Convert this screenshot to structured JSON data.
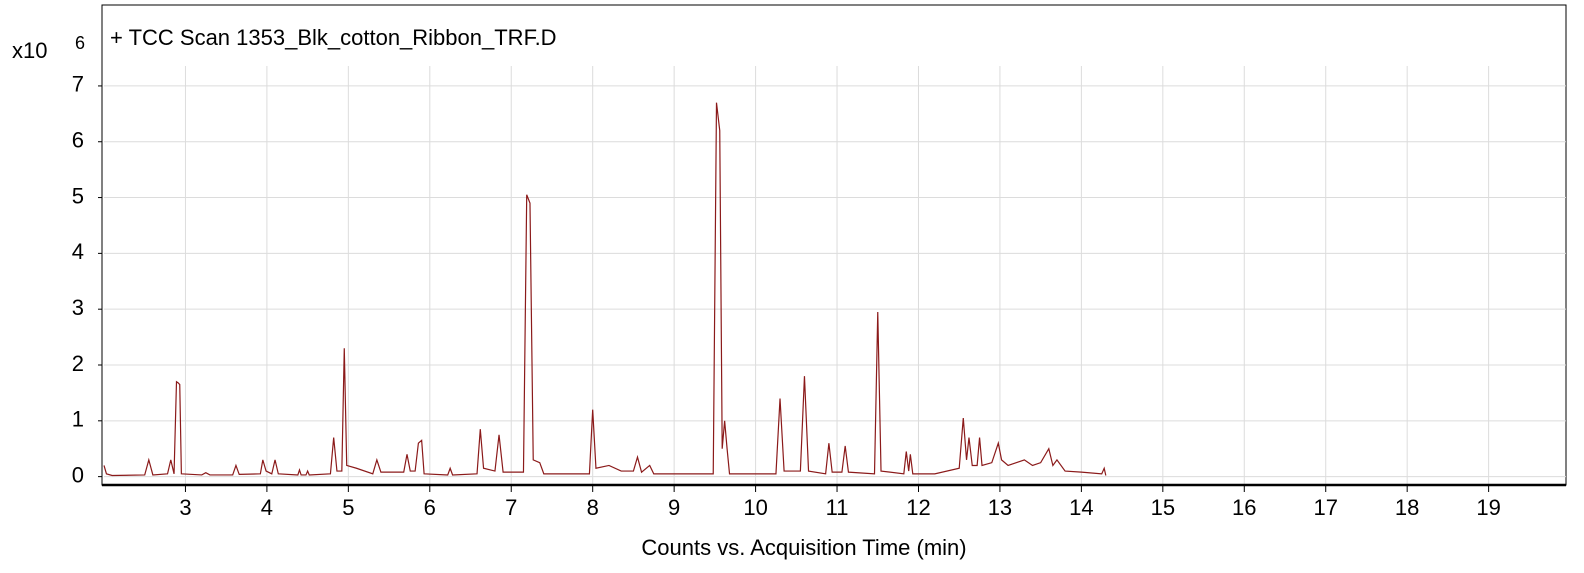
{
  "chart_data": {
    "type": "line",
    "title": "+ TCC Scan 1353_Blk_cotton_Ribbon_TRF.D",
    "y_multiplier": "x10",
    "y_exponent": "6",
    "xlabel": "Counts vs. Acquisition Time (min)",
    "x": [
      2.0,
      2.03,
      2.1,
      2.5,
      2.55,
      2.6,
      2.78,
      2.82,
      2.86,
      2.89,
      2.91,
      2.93,
      2.95,
      3.2,
      3.25,
      3.3,
      3.58,
      3.62,
      3.66,
      3.92,
      3.95,
      3.99,
      4.06,
      4.1,
      4.14,
      4.38,
      4.4,
      4.42,
      4.48,
      4.5,
      4.52,
      4.78,
      4.82,
      4.86,
      4.92,
      4.95,
      4.98,
      5.1,
      5.3,
      5.35,
      5.4,
      5.68,
      5.72,
      5.76,
      5.82,
      5.86,
      5.9,
      5.93,
      6.22,
      6.25,
      6.28,
      6.58,
      6.62,
      6.66,
      6.8,
      6.85,
      6.9,
      7.15,
      7.19,
      7.23,
      7.27,
      7.35,
      7.4,
      7.96,
      8.0,
      8.04,
      8.2,
      8.35,
      8.5,
      8.55,
      8.6,
      8.7,
      8.75,
      9.48,
      9.52,
      9.56,
      9.59,
      9.62,
      9.65,
      9.68,
      10.25,
      10.3,
      10.35,
      10.55,
      10.6,
      10.65,
      10.86,
      10.9,
      10.94,
      11.06,
      11.1,
      11.14,
      11.46,
      11.5,
      11.54,
      11.82,
      11.85,
      11.88,
      11.9,
      11.93,
      12.2,
      12.5,
      12.55,
      12.59,
      12.62,
      12.66,
      12.72,
      12.75,
      12.78,
      12.9,
      12.98,
      13.02,
      13.1,
      13.2,
      13.3,
      13.4,
      13.5,
      13.6,
      13.65,
      13.7,
      13.8,
      14.0,
      14.25,
      14.28,
      14.3
    ],
    "series": [
      {
        "color": "#8b1a1a",
        "values": [
          0.2,
          0.05,
          0.02,
          0.03,
          0.3,
          0.03,
          0.05,
          0.3,
          0.05,
          1.7,
          1.68,
          1.65,
          0.05,
          0.03,
          0.07,
          0.03,
          0.03,
          0.2,
          0.04,
          0.05,
          0.3,
          0.1,
          0.05,
          0.3,
          0.05,
          0.03,
          0.12,
          0.03,
          0.03,
          0.1,
          0.03,
          0.05,
          0.7,
          0.1,
          0.1,
          2.3,
          0.2,
          0.15,
          0.05,
          0.3,
          0.08,
          0.08,
          0.4,
          0.1,
          0.1,
          0.6,
          0.65,
          0.05,
          0.03,
          0.15,
          0.03,
          0.05,
          0.85,
          0.15,
          0.1,
          0.75,
          0.08,
          0.08,
          5.05,
          4.9,
          0.3,
          0.25,
          0.05,
          0.05,
          1.2,
          0.15,
          0.2,
          0.1,
          0.1,
          0.35,
          0.08,
          0.2,
          0.05,
          0.05,
          6.7,
          6.2,
          0.5,
          1.0,
          0.5,
          0.05,
          0.05,
          1.4,
          0.1,
          0.1,
          1.8,
          0.1,
          0.05,
          0.6,
          0.08,
          0.08,
          0.55,
          0.08,
          0.05,
          2.95,
          0.1,
          0.05,
          0.45,
          0.1,
          0.4,
          0.05,
          0.05,
          0.15,
          1.05,
          0.3,
          0.7,
          0.2,
          0.2,
          0.7,
          0.2,
          0.25,
          0.6,
          0.3,
          0.2,
          0.25,
          0.3,
          0.2,
          0.25,
          0.5,
          0.2,
          0.3,
          0.1,
          0.08,
          0.05,
          0.15,
          0.02
        ]
      }
    ],
    "xlim": [
      2,
      19.95
    ],
    "ylim": [
      -0.15,
      8.45
    ],
    "xticks": [
      3,
      4,
      5,
      6,
      7,
      8,
      9,
      10,
      11,
      12,
      13,
      14,
      15,
      16,
      17,
      18,
      19
    ],
    "yticks": [
      0,
      1,
      2,
      3,
      4,
      5,
      6,
      7
    ],
    "grid": true
  }
}
